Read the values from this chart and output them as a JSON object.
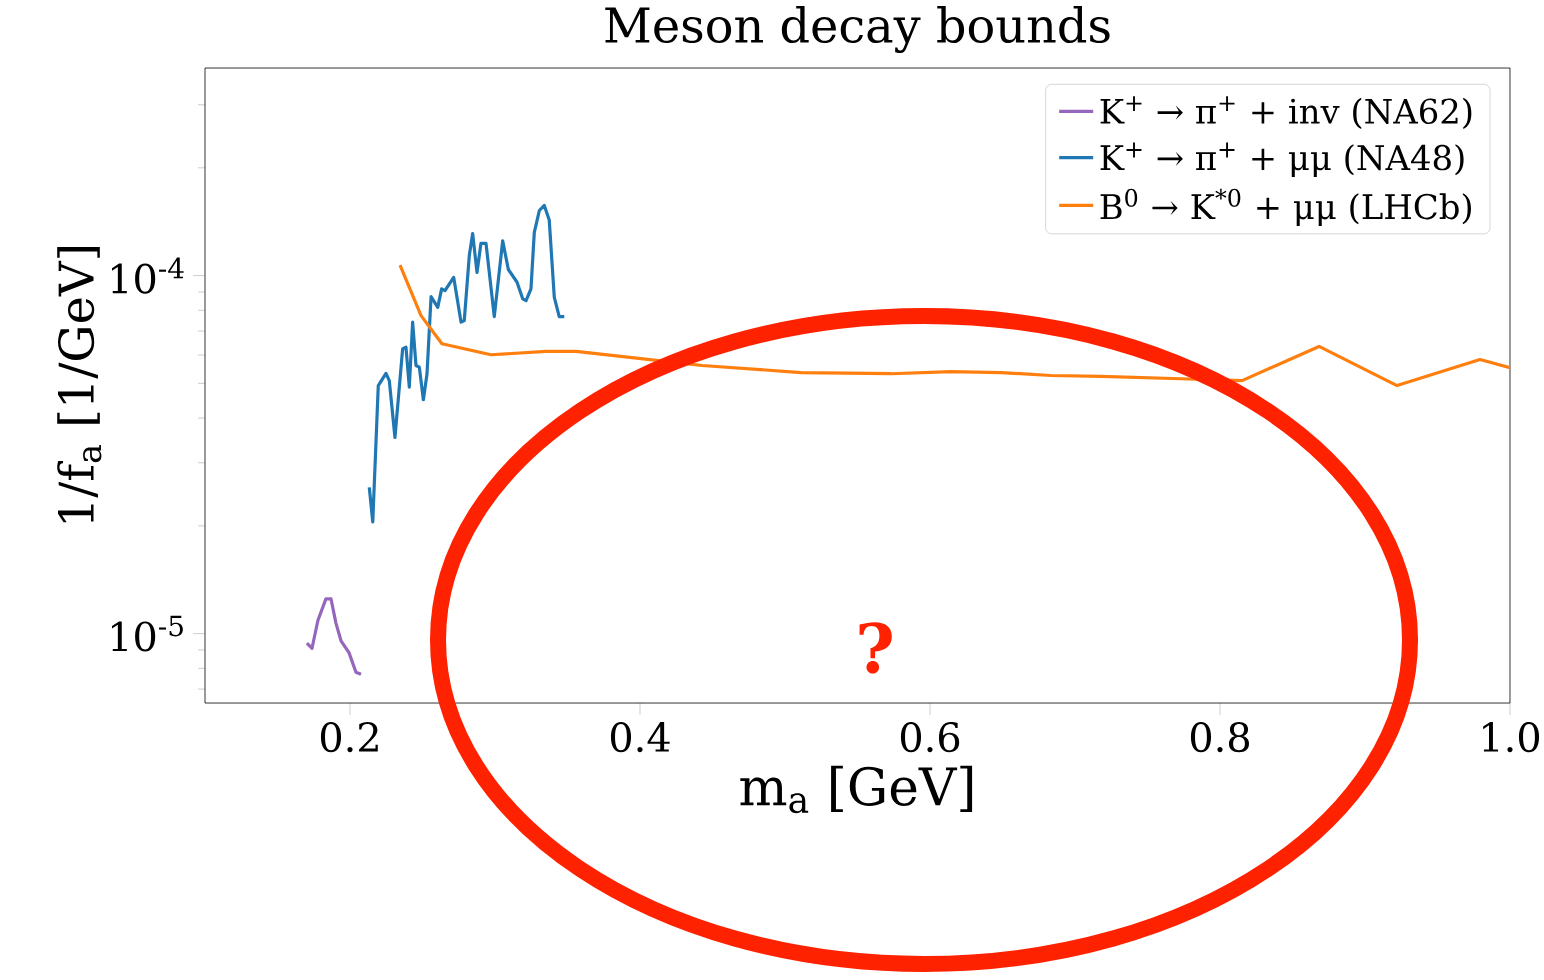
{
  "chart_data": {
    "type": "line",
    "title": "Meson decay bounds",
    "xlabel": "m$_{a}$ [GeV]",
    "ylabel": "1/f$_{a}$ [1/GeV]",
    "log": "y",
    "xlim": [
      0.1,
      1.0
    ],
    "ylim": [
      6.4e-06,
      0.00038
    ],
    "xticks": [
      {
        "value": 0.2,
        "label": "0.2"
      },
      {
        "value": 0.4,
        "label": "0.4"
      },
      {
        "value": 0.6,
        "label": "0.6"
      },
      {
        "value": 0.8,
        "label": "0.8"
      },
      {
        "value": 1.0,
        "label": "1.0"
      }
    ],
    "yticks": [
      {
        "value": 1e-05,
        "label": "10$^{-5}$"
      },
      {
        "value": 0.0001,
        "label": "10$^{-4}$"
      },
      {
        "value": 7e-06,
        "label": null
      },
      {
        "value": 8e-06,
        "label": null
      },
      {
        "value": 9e-06,
        "label": null
      },
      {
        "value": 2e-05,
        "label": null
      },
      {
        "value": 3e-05,
        "label": null
      },
      {
        "value": 4e-05,
        "label": null
      },
      {
        "value": 5e-05,
        "label": null
      },
      {
        "value": 6e-05,
        "label": null
      },
      {
        "value": 7e-05,
        "label": null
      },
      {
        "value": 8e-05,
        "label": null
      },
      {
        "value": 9e-05,
        "label": null
      },
      {
        "value": 0.0002,
        "label": null
      },
      {
        "value": 0.0003,
        "label": null
      }
    ],
    "legend": "top right",
    "grid": false,
    "annotations": [
      "?"
    ],
    "series": [
      {
        "name": "K$^{+}$ → π$^{+}$ + inv (NA62)",
        "color": "#9467bd",
        "x": [
          0.1703,
          0.1738,
          0.1779,
          0.1834,
          0.1869,
          0.1903,
          0.1938,
          0.1993,
          0.2041,
          0.2076
        ],
        "values": [
          9.4e-06,
          9.1e-06,
          1.09e-05,
          1.25e-05,
          1.25e-05,
          1.07e-05,
          9.55e-06,
          8.85e-06,
          7.8e-06,
          7.7e-06
        ]
      },
      {
        "name": "K$^{+}$ → π$^{+}$ + μμ (NA48)",
        "color": "#1f77b4",
        "x": [
          0.2133,
          0.2157,
          0.2195,
          0.2248,
          0.2271,
          0.231,
          0.2363,
          0.2386,
          0.2409,
          0.2432,
          0.2455,
          0.2478,
          0.2506,
          0.2531,
          0.2559,
          0.2605,
          0.2632,
          0.2655,
          0.2715,
          0.2766,
          0.2788,
          0.2823,
          0.2846,
          0.2876,
          0.2903,
          0.2938,
          0.2995,
          0.3053,
          0.3092,
          0.3152,
          0.3191,
          0.3214,
          0.3248,
          0.3271,
          0.3306,
          0.334,
          0.3374,
          0.3409,
          0.3443,
          0.3478
        ],
        "values": [
          2.56e-05,
          2.05e-05,
          4.93e-05,
          5.33e-05,
          5.09e-05,
          3.53e-05,
          6.24e-05,
          6.31e-05,
          4.88e-05,
          7.41e-05,
          5.61e-05,
          5.55e-05,
          4.5e-05,
          5.31e-05,
          8.73e-05,
          8.15e-05,
          9.18e-05,
          9.08e-05,
          9.89e-05,
          7.41e-05,
          7.49e-05,
          0.000114,
          0.000131,
          0.000102,
          0.000123,
          0.000123,
          7.68e-05,
          0.000125,
          0.000104,
          9.58e-05,
          8.61e-05,
          8.51e-05,
          9.18e-05,
          0.000132,
          0.000152,
          0.000157,
          0.000143,
          8.69e-05,
          7.68e-05,
          7.68e-05
        ]
      },
      {
        "name": "B$^{0}$ → K$^{*0}$ + μμ (LHCb)",
        "color": "#ff7f0e",
        "x": [
          0.2345,
          0.249,
          0.2634,
          0.2972,
          0.3352,
          0.3559,
          0.4007,
          0.4428,
          0.511,
          0.5731,
          0.6145,
          0.649,
          0.6834,
          0.7179,
          0.7731,
          0.8152,
          0.8683,
          0.9221,
          0.9793,
          1.0
        ],
        "values": [
          0.000107,
          7.73e-05,
          6.45e-05,
          6.01e-05,
          6.14e-05,
          6.14e-05,
          5.86e-05,
          5.61e-05,
          5.36e-05,
          5.32e-05,
          5.39e-05,
          5.36e-05,
          5.26e-05,
          5.23e-05,
          5.15e-05,
          5.09e-05,
          6.34e-05,
          4.93e-05,
          5.83e-05,
          5.53e-05
        ]
      }
    ]
  }
}
